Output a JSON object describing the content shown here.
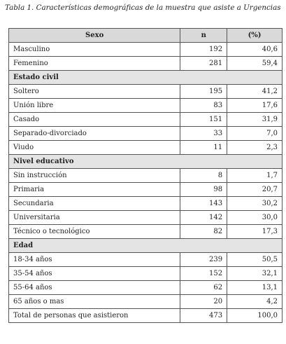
{
  "caption": "Tabla 1. Características demográficas de la muestra que asiste a Urgencias",
  "table": {
    "header": [
      "Sexo",
      "n",
      "(%)"
    ],
    "rows": [
      [
        "Masculino",
        "192",
        "40,6"
      ],
      [
        "Femenino",
        "281",
        "59,4"
      ],
      [
        "Estado civil"
      ],
      [
        "Soltero",
        "195",
        "41,2"
      ],
      [
        "Unión libre",
        "83",
        "17,6"
      ],
      [
        "Casado",
        "151",
        "31,9"
      ],
      [
        "Separado-divorciado",
        "33",
        "7,0"
      ],
      [
        "Viudo",
        "11",
        "2,3"
      ],
      [
        "Nivel educativo"
      ],
      [
        "Sin instrucción",
        "8",
        "1,7"
      ],
      [
        "Primaria",
        "98",
        "20,7"
      ],
      [
        "Secundaria",
        "143",
        "30,2"
      ],
      [
        "Universitaria",
        "142",
        "30,0"
      ],
      [
        "Técnico o tecnológico",
        "82",
        "17,3"
      ],
      [
        "Edad"
      ],
      [
        "18-34 años",
        "239",
        "50,5"
      ],
      [
        "35-54 años",
        "152",
        "32,1"
      ],
      [
        "55-64 años",
        "62",
        "13,1"
      ],
      [
        "65 años o mas",
        "20",
        "4,2"
      ],
      [
        "Total de personas que asistieron",
        "473",
        "100,0"
      ]
    ]
  }
}
